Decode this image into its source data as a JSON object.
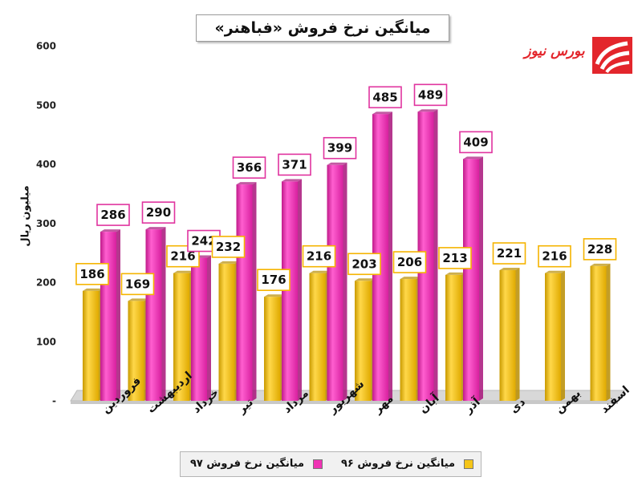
{
  "chart_data": {
    "type": "bar",
    "title": "میانگین نرخ فروش «فباهنر»",
    "ylabel": "میلیون ریال",
    "ylim": [
      0,
      600
    ],
    "yticks": [
      "-",
      "100",
      "200",
      "300",
      "400",
      "500",
      "600"
    ],
    "categories": [
      "فروردین",
      "اردیبهشت",
      "خرداد",
      "تیر",
      "مرداد",
      "شهریور",
      "مهر",
      "آبان",
      "آذر",
      "دی",
      "بهمن",
      "اسفند"
    ],
    "series": [
      {
        "name": "میانگین نرخ فروش ۹۶",
        "color": "#f5c518",
        "values": [
          186,
          169,
          216,
          232,
          176,
          216,
          203,
          206,
          213,
          221,
          216,
          228
        ]
      },
      {
        "name": "میانگین نرخ فروش ۹۷",
        "color": "#f033b4",
        "values": [
          286,
          290,
          242,
          366,
          371,
          399,
          485,
          489,
          409,
          null,
          null,
          null
        ]
      }
    ],
    "grid": false,
    "legend_position": "bottom"
  },
  "logo": {
    "text": "بورس نیوز",
    "color": "#e3262c"
  },
  "colors": {
    "label_border_96": "#f5b400",
    "label_border_97": "#e0349f"
  }
}
